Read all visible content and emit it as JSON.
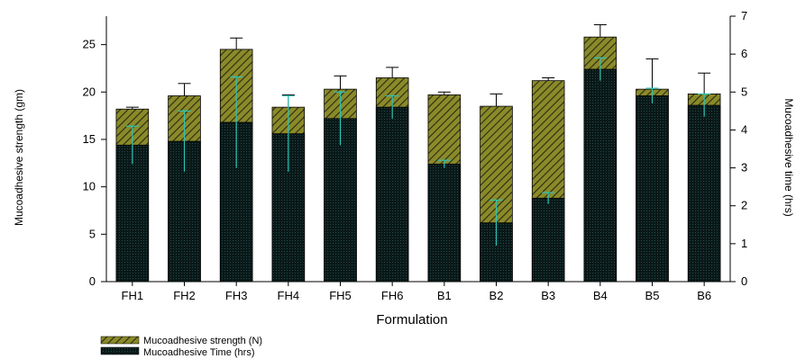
{
  "chart_data": {
    "type": "bar",
    "xlabel": "Formulation",
    "ylabel_left": "Mucoadhesive strength (gm)",
    "ylabel_right": "Mucoadhesive time (hrs)",
    "categories": [
      "FH1",
      "FH2",
      "FH3",
      "FH4",
      "FH5",
      "FH6",
      "B1",
      "B2",
      "B3",
      "B4",
      "B5",
      "B6"
    ],
    "ylim_left": [
      0,
      28
    ],
    "ylim_right": [
      0,
      7
    ],
    "yticks_left": [
      0,
      5,
      10,
      15,
      20,
      25
    ],
    "yticks_right": [
      0,
      1,
      2,
      3,
      4,
      5,
      6,
      7
    ],
    "series": [
      {
        "name": "Mucoadhesive strength (N)",
        "axis": "left",
        "values": [
          18.2,
          19.6,
          24.5,
          18.4,
          20.3,
          21.5,
          19.7,
          18.5,
          21.2,
          25.8,
          20.3,
          19.8
        ],
        "errors": [
          0.2,
          1.3,
          1.2,
          1.3,
          1.4,
          1.1,
          0.3,
          1.3,
          0.3,
          1.3,
          3.2,
          2.2
        ],
        "color": "#8a8a2a"
      },
      {
        "name": "Mucoadhesive Time (hrs)",
        "axis": "right",
        "values": [
          3.6,
          3.7,
          4.2,
          3.9,
          4.3,
          4.6,
          3.1,
          1.55,
          2.2,
          5.6,
          4.9,
          4.65
        ],
        "errors": [
          0.5,
          0.8,
          1.2,
          1.0,
          0.7,
          0.3,
          0.1,
          0.6,
          0.15,
          0.3,
          0.2,
          0.3
        ],
        "color": "#0f2a2a"
      }
    ],
    "legend_position": "bottom-left",
    "grid": false
  }
}
